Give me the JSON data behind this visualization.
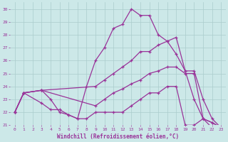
{
  "xlabel": "Windchill (Refroidissement éolien,°C)",
  "bg_color": "#cce8e8",
  "grid_color": "#aacccc",
  "line_color": "#993399",
  "xlim": [
    -0.5,
    23.5
  ],
  "ylim": [
    21,
    30.5
  ],
  "xticks": [
    0,
    1,
    2,
    3,
    4,
    5,
    6,
    7,
    8,
    9,
    10,
    11,
    12,
    13,
    14,
    15,
    16,
    17,
    18,
    19,
    20,
    21,
    22,
    23
  ],
  "yticks": [
    21,
    22,
    23,
    24,
    25,
    26,
    27,
    28,
    29,
    30
  ],
  "line1_x": [
    0,
    1,
    3,
    4,
    5,
    6,
    7,
    8,
    9,
    10,
    11,
    12,
    13,
    14,
    15,
    16,
    17,
    18,
    19,
    20,
    21,
    22,
    23
  ],
  "line1_y": [
    22,
    23.5,
    23.7,
    23.0,
    22.0,
    21.8,
    21.5,
    24.0,
    26.0,
    27.0,
    28.5,
    28.8,
    30.0,
    29.5,
    29.5,
    28.0,
    27.5,
    26.5,
    25.2,
    23.0,
    21.5,
    20.8,
    20.8
  ],
  "line2_x": [
    0,
    1,
    3,
    9,
    10,
    11,
    12,
    13,
    14,
    15,
    16,
    17,
    18,
    19,
    20,
    21,
    22,
    23
  ],
  "line2_y": [
    22,
    23.5,
    23.7,
    24.0,
    24.5,
    25.0,
    25.5,
    26.0,
    26.7,
    26.7,
    27.2,
    27.5,
    27.8,
    25.2,
    25.2,
    23.0,
    21.5,
    20.8
  ],
  "line3_x": [
    0,
    1,
    3,
    9,
    10,
    11,
    12,
    13,
    14,
    15,
    16,
    17,
    18,
    19,
    20,
    21,
    22,
    23
  ],
  "line3_y": [
    22,
    23.5,
    23.7,
    22.5,
    23.0,
    23.5,
    23.8,
    24.2,
    24.5,
    25.0,
    25.2,
    25.5,
    25.5,
    25.0,
    25.0,
    21.5,
    21.2,
    20.8
  ],
  "line4_x": [
    0,
    1,
    3,
    4,
    5,
    6,
    7,
    8,
    9,
    10,
    11,
    12,
    13,
    14,
    15,
    16,
    17,
    18,
    19,
    20,
    21,
    22,
    23
  ],
  "line4_y": [
    22,
    23.5,
    22.7,
    22.2,
    22.2,
    21.8,
    21.5,
    21.5,
    22.0,
    22.0,
    22.0,
    22.0,
    22.5,
    23.0,
    23.5,
    23.5,
    24.0,
    24.0,
    21.0,
    21.0,
    21.5,
    21.2,
    20.8
  ]
}
